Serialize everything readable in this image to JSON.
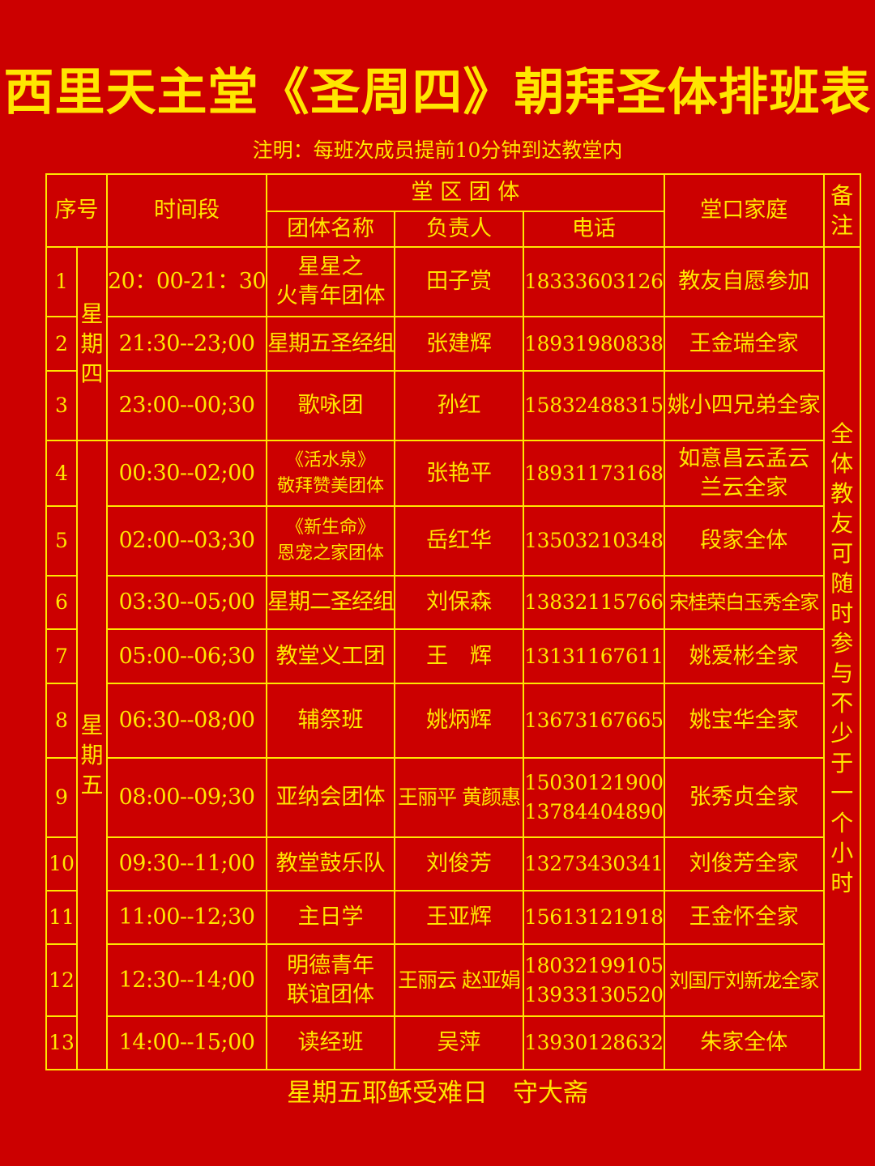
{
  "title": "西里天主堂《圣周四》朝拜圣体排班表",
  "note": "注明：每班次成员提前10分钟到达教堂内",
  "headers": {
    "index": "序号",
    "time": "时间段",
    "group_section": "堂 区 团 体",
    "group_name": "团体名称",
    "leader": "负责人",
    "phone": "电话",
    "family": "堂口家庭",
    "remark": "备注"
  },
  "days": {
    "thursday": "星期四",
    "friday": "星期五"
  },
  "remark_text": "全体教友可随时参与不少于一个小时",
  "rows": [
    {
      "no": "1",
      "time": "20：00-21：30",
      "group": [
        "星星之",
        "火青年团体"
      ],
      "leader": "田子赏",
      "phone": [
        "18333603126"
      ],
      "family": [
        "教友自愿参加"
      ]
    },
    {
      "no": "2",
      "time": "21:30--23;00",
      "group": [
        "星期五圣经组"
      ],
      "leader": "张建辉",
      "phone": [
        "18931980838"
      ],
      "family": [
        "王金瑞全家"
      ]
    },
    {
      "no": "3",
      "time": "23:00--00;30",
      "group": [
        "歌咏团"
      ],
      "leader": "孙红",
      "phone": [
        "15832488315"
      ],
      "family": [
        "姚小四兄弟全家"
      ]
    },
    {
      "no": "4",
      "time": "00:30--02;00",
      "group": [
        "《活水泉》",
        "敬拜赞美团体"
      ],
      "leader": "张艳平",
      "phone": [
        "18931173168"
      ],
      "family": [
        "如意昌云孟云",
        "兰云全家"
      ]
    },
    {
      "no": "5",
      "time": "02:00--03;30",
      "group": [
        "《新生命》",
        "恩宠之家团体"
      ],
      "leader": "岳红华",
      "phone": [
        "13503210348"
      ],
      "family": [
        "段家全体"
      ]
    },
    {
      "no": "6",
      "time": "03:30--05;00",
      "group": [
        "星期二圣经组"
      ],
      "leader": "刘保森",
      "phone": [
        "13832115766"
      ],
      "family": [
        "宋桂荣白玉秀全家"
      ]
    },
    {
      "no": "7",
      "time": "05:00--06;30",
      "group": [
        "教堂义工团"
      ],
      "leader": "王　辉",
      "phone": [
        "13131167611"
      ],
      "family": [
        "姚爱彬全家"
      ]
    },
    {
      "no": "8",
      "time": "06:30--08;00",
      "group": [
        "辅祭班"
      ],
      "leader": "姚炳辉",
      "phone": [
        "13673167665"
      ],
      "family": [
        "姚宝华全家"
      ]
    },
    {
      "no": "9",
      "time": "08:00--09;30",
      "group": [
        "亚纳会团体"
      ],
      "leader": "王丽平 黄颜惠",
      "phone": [
        "15030121900",
        "13784404890"
      ],
      "family": [
        "张秀贞全家"
      ]
    },
    {
      "no": "10",
      "time": "09:30--11;00",
      "group": [
        "教堂鼓乐队"
      ],
      "leader": "刘俊芳",
      "phone": [
        "13273430341"
      ],
      "family": [
        "刘俊芳全家"
      ]
    },
    {
      "no": "11",
      "time": "11:00--12;30",
      "group": [
        "主日学"
      ],
      "leader": "王亚辉",
      "phone": [
        "15613121918"
      ],
      "family": [
        "王金怀全家"
      ]
    },
    {
      "no": "12",
      "time": "12:30--14;00",
      "group": [
        "明德青年",
        "联谊团体"
      ],
      "leader": "王丽云 赵亚娟",
      "phone": [
        "18032199105",
        "13933130520"
      ],
      "family": [
        "刘国厅刘新龙全家"
      ]
    },
    {
      "no": "13",
      "time": "14:00--15;00",
      "group": [
        "读经班"
      ],
      "leader": "吴萍",
      "phone": [
        "13930128632"
      ],
      "family": [
        "朱家全体"
      ]
    }
  ],
  "footer": "星期五耶稣受难日　守大斋",
  "colors": {
    "background": "#cc0000",
    "text": "#ffe600",
    "lines": "#ffe600"
  }
}
